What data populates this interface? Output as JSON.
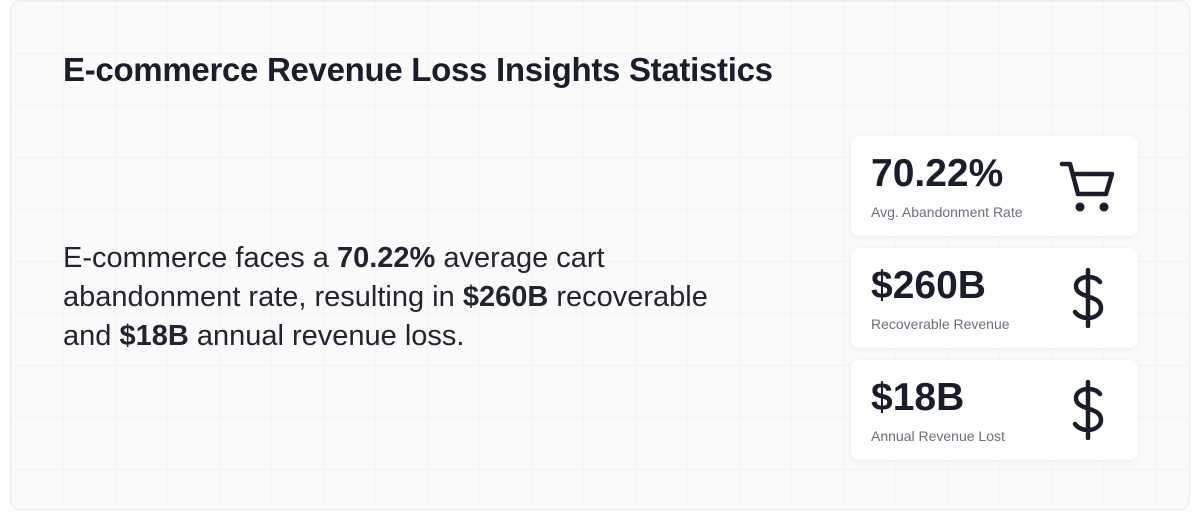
{
  "header": {
    "title": "E-commerce Revenue Loss Insights Statistics"
  },
  "summary": [
    {
      "text": "E-commerce faces a ",
      "bold": false
    },
    {
      "text": "70.22%",
      "bold": true
    },
    {
      "text": " average cart abandonment rate, resulting in ",
      "bold": false
    },
    {
      "text": "$260B",
      "bold": true
    },
    {
      "text": " recoverable and ",
      "bold": false
    },
    {
      "text": "$18B",
      "bold": true
    },
    {
      "text": " annual revenue loss.",
      "bold": false
    }
  ],
  "stats": [
    {
      "value": "70.22%",
      "label": "Avg. Abandonment Rate",
      "icon": "cart"
    },
    {
      "value": "$260B",
      "label": "Recoverable Revenue",
      "icon": "dollar"
    },
    {
      "value": "$18B",
      "label": "Annual Revenue Lost",
      "icon": "dollar"
    }
  ]
}
